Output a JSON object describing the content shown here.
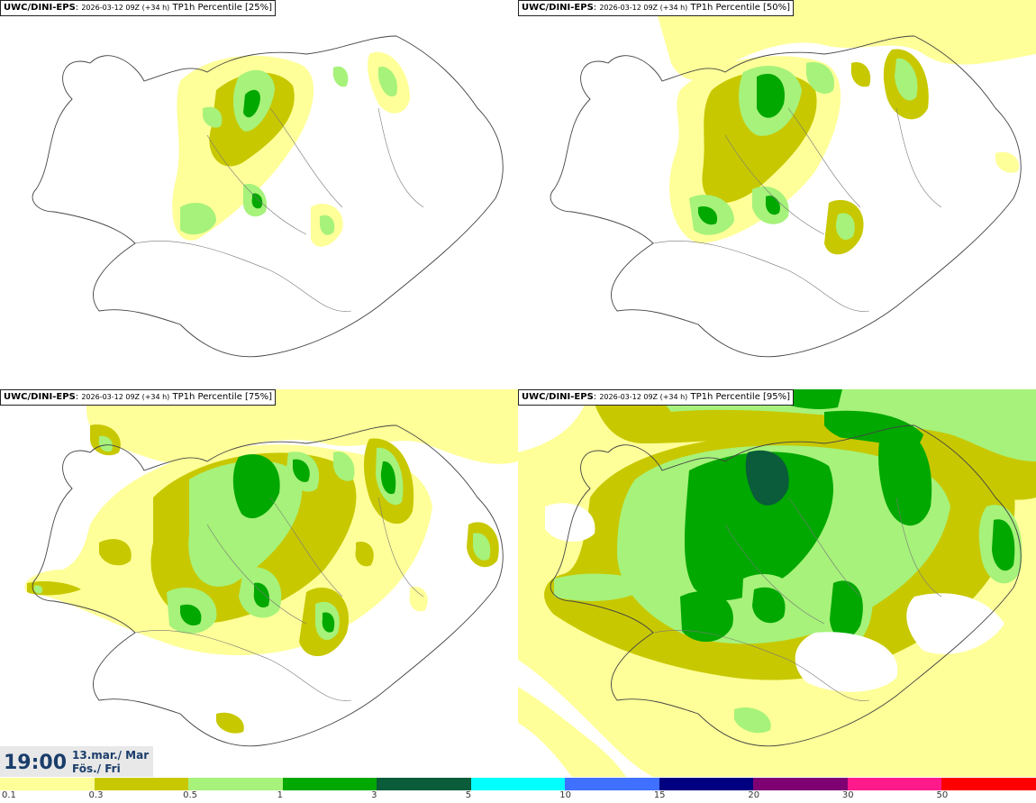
{
  "panels": [
    {
      "model": "UWC/DINI-EPS",
      "run": "2026-03-12 09Z (+34 h)",
      "field": "TP1h Percentile [25%]"
    },
    {
      "model": "UWC/DINI-EPS",
      "run": "2026-03-12 09Z (+34 h)",
      "field": "TP1h Percentile [50%]"
    },
    {
      "model": "UWC/DINI-EPS",
      "run": "2026-03-12 09Z (+34 h)",
      "field": "TP1h Percentile [75%]"
    },
    {
      "model": "UWC/DINI-EPS",
      "run": "2026-03-12 09Z (+34 h)",
      "field": "TP1h Percentile [95%]"
    }
  ],
  "valid_time": {
    "time": "19:00",
    "date_line1": "13.mar./ Mar",
    "date_line2": "Fös./ Fri"
  },
  "colorbar": {
    "labels": [
      "0.1",
      "0.3",
      "0.5",
      "1",
      "3",
      "5",
      "10",
      "15",
      "20",
      "30",
      "50"
    ],
    "colors": [
      "#ffff99",
      "#c8c800",
      "#a6f27a",
      "#00a800",
      "#0a5c3a",
      "#00ffff",
      "#3f70ff",
      "#000080",
      "#7f0073",
      "#ff1a8c",
      "#ff0000"
    ]
  }
}
